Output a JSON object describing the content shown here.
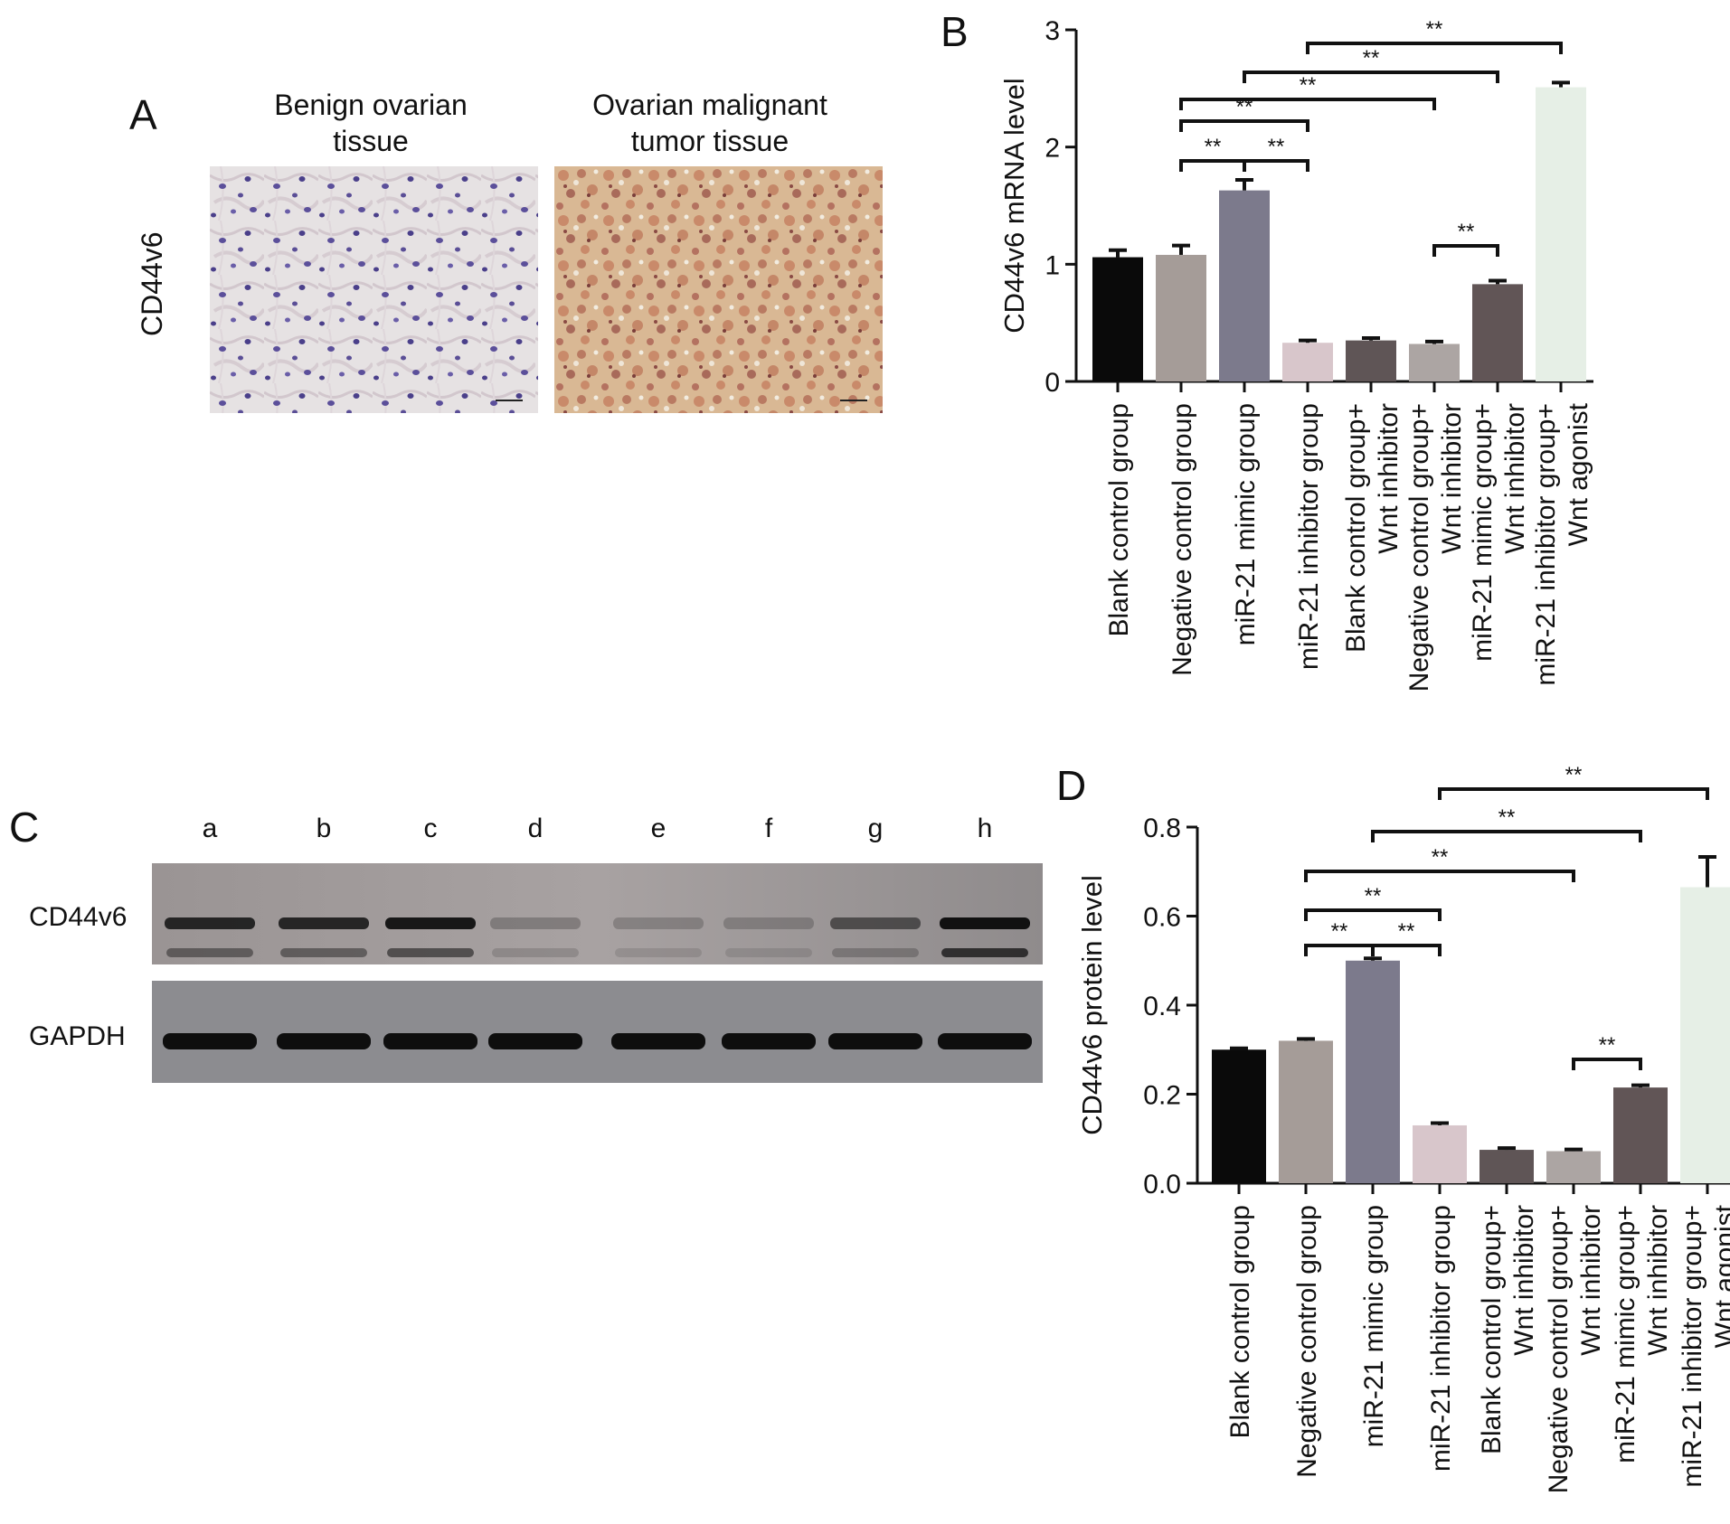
{
  "panels": {
    "A": {
      "letter": "A",
      "col1_title_line1": "Benign ovarian",
      "col1_title_line2": "tissue",
      "col2_title_line1": "Ovarian malignant",
      "col2_title_line2": "tumor tissue",
      "row_label": "CD44v6"
    },
    "B": {
      "letter": "B"
    },
    "C": {
      "letter": "C",
      "lanes": [
        "a",
        "b",
        "c",
        "d",
        "e",
        "f",
        "g",
        "h"
      ],
      "blot1_label": "CD44v6",
      "blot2_label": "GAPDH"
    },
    "D": {
      "letter": "D"
    }
  },
  "colors": {
    "bars": [
      "#0a0a0a",
      "#a59c98",
      "#7c7a8c",
      "#d8c6cb",
      "#5f5556",
      "#aca5a3",
      "#615556",
      "#e6efe6"
    ]
  },
  "chart_data": [
    {
      "panel": "B",
      "type": "bar",
      "ylabel": "CD44v6 mRNA level",
      "ylim": [
        0,
        3
      ],
      "yticks": [
        "0",
        "1",
        "2",
        "3"
      ],
      "categories": [
        [
          "Blank control group"
        ],
        [
          "Negative control group"
        ],
        [
          "miR-21 mimic group"
        ],
        [
          "miR-21 inhibitor group"
        ],
        [
          "Blank control group+",
          "Wnt inhibitor"
        ],
        [
          "Negative control group+",
          "Wnt inhibitor"
        ],
        [
          "miR-21 mimic group+",
          "Wnt inhibitor"
        ],
        [
          "miR-21 inhibitor group+",
          "Wnt agonist"
        ]
      ],
      "values": [
        1.06,
        1.08,
        1.63,
        0.33,
        0.35,
        0.32,
        0.83,
        2.51
      ],
      "errors": [
        0.06,
        0.08,
        0.09,
        0.02,
        0.02,
        0.02,
        0.03,
        0.04
      ],
      "significance": [
        {
          "from": 1,
          "to": 2,
          "label": "**"
        },
        {
          "from": 2,
          "to": 3,
          "label": "**"
        },
        {
          "from": 1,
          "to": 3,
          "label": "**"
        },
        {
          "from": 1,
          "to": 5,
          "label": "**"
        },
        {
          "from": 2,
          "to": 6,
          "label": "**"
        },
        {
          "from": 3,
          "to": 7,
          "label": "**"
        },
        {
          "from": 5,
          "to": 6,
          "label": "**"
        }
      ]
    },
    {
      "panel": "D",
      "type": "bar",
      "ylabel": "CD44v6 protein level",
      "ylim": [
        0,
        0.8
      ],
      "yticks": [
        "0.0",
        "0.2",
        "0.4",
        "0.6",
        "0.8"
      ],
      "categories": [
        [
          "Blank control group"
        ],
        [
          "Negative control group"
        ],
        [
          "miR-21 mimic group"
        ],
        [
          "miR-21 inhibitor group"
        ],
        [
          "Blank control group+",
          "Wnt inhibitor"
        ],
        [
          "Negative control group+",
          "Wnt inhibitor"
        ],
        [
          "miR-21 mimic group+",
          "Wnt inhibitor"
        ],
        [
          "miR-21 inhibitor group+",
          "Wnt agonist"
        ]
      ],
      "values": [
        0.3,
        0.32,
        0.5,
        0.13,
        0.075,
        0.072,
        0.215,
        0.665
      ],
      "errors": [
        0.003,
        0.004,
        0.005,
        0.005,
        0.004,
        0.004,
        0.005,
        0.068
      ],
      "significance": [
        {
          "from": 1,
          "to": 2,
          "label": "**"
        },
        {
          "from": 2,
          "to": 3,
          "label": "**"
        },
        {
          "from": 1,
          "to": 3,
          "label": "**"
        },
        {
          "from": 1,
          "to": 5,
          "label": "**"
        },
        {
          "from": 2,
          "to": 6,
          "label": "**"
        },
        {
          "from": 3,
          "to": 7,
          "label": "**"
        },
        {
          "from": 5,
          "to": 6,
          "label": "**"
        }
      ]
    }
  ]
}
